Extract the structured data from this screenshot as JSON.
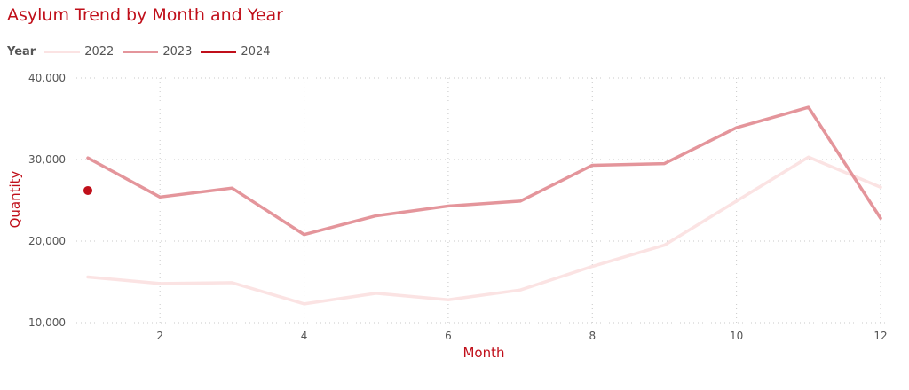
{
  "chart_data": {
    "type": "line",
    "title": "Asylum Trend by Month and Year",
    "xlabel": "Month",
    "ylabel": "Quantity",
    "legend_title": "Year",
    "legend_position": "top-left",
    "xlim": [
      1,
      12
    ],
    "ylim": [
      10000,
      40000
    ],
    "x_ticks": [
      2,
      4,
      6,
      8,
      10,
      12
    ],
    "x_tick_labels": [
      "2",
      "4",
      "6",
      "8",
      "10",
      "12"
    ],
    "y_ticks": [
      10000,
      20000,
      30000,
      40000
    ],
    "y_tick_labels": [
      "10,000",
      "20,000",
      "30,000",
      "40,000"
    ],
    "grid": true,
    "series": [
      {
        "name": "2022",
        "color": "#fbe3e3",
        "x": [
          1,
          2,
          3,
          4,
          5,
          6,
          7,
          8,
          9,
          10,
          11,
          12
        ],
        "values": [
          15600,
          14800,
          14900,
          12300,
          13600,
          12800,
          14000,
          16900,
          19500,
          24900,
          30300,
          26600
        ]
      },
      {
        "name": "2023",
        "color": "#e4959b",
        "x": [
          1,
          2,
          3,
          4,
          5,
          6,
          7,
          8,
          9,
          10,
          11,
          12
        ],
        "values": [
          30200,
          25400,
          26500,
          20800,
          23100,
          24300,
          24900,
          29300,
          29500,
          33900,
          36400,
          22800
        ]
      },
      {
        "name": "2024",
        "color": "#c00f1a",
        "x": [
          1
        ],
        "values": [
          26200
        ]
      }
    ]
  }
}
